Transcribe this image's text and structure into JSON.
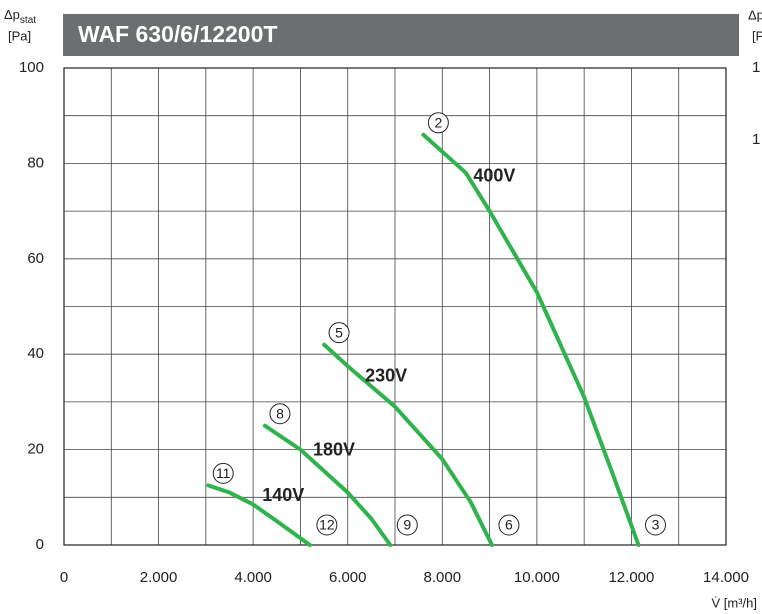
{
  "chart_data": {
    "type": "line",
    "title": "WAF 630/6/12200T",
    "ylabel": {
      "symbol": "Δp",
      "sub": "stat",
      "unit": "[Pa]"
    },
    "xlabel": "V̇ [m³/h]",
    "xlim": [
      0,
      14000
    ],
    "ylim": [
      0,
      100
    ],
    "xticks": [
      0,
      {
        "value": 2000,
        "label": "2.000"
      },
      {
        "value": 4000,
        "label": "4.000"
      },
      {
        "value": 6000,
        "label": "6.000"
      },
      {
        "value": 8000,
        "label": "8.000"
      },
      {
        "value": 10000,
        "label": "10.000"
      },
      {
        "value": 12000,
        "label": "12.000"
      },
      {
        "value": 14000,
        "label": "14.000"
      }
    ],
    "xminor": [
      1000,
      3000,
      5000,
      7000,
      9000,
      11000,
      13000
    ],
    "yticks": [
      0,
      20,
      40,
      60,
      80,
      100
    ],
    "yminor": [
      10,
      30,
      50,
      70,
      90
    ],
    "grid": true,
    "series": [
      {
        "name": "400V",
        "color": "#2fb34c",
        "start_label": "2",
        "end_label": "3",
        "x": [
          7600,
          8500,
          9000,
          10000,
          11000,
          11600,
          12150
        ],
        "y": [
          86,
          78,
          70,
          53,
          31,
          15,
          0
        ]
      },
      {
        "name": "230V",
        "color": "#2fb34c",
        "start_label": "5",
        "end_label": "6",
        "x": [
          5500,
          6000,
          7000,
          8000,
          8600,
          9050
        ],
        "y": [
          42,
          37.5,
          29,
          18,
          9,
          0
        ]
      },
      {
        "name": "180V",
        "color": "#2fb34c",
        "start_label": "8",
        "end_label": "9",
        "x": [
          4250,
          5000,
          6000,
          6500,
          6900
        ],
        "y": [
          25,
          20,
          11,
          5.5,
          0
        ]
      },
      {
        "name": "140V",
        "color": "#2fb34c",
        "start_label": "11",
        "end_label": "12",
        "x": [
          3050,
          3500,
          4000,
          4500,
          5200
        ],
        "y": [
          12.5,
          11,
          8.5,
          5,
          0
        ]
      }
    ],
    "right_fragment": {
      "label": "Δp",
      "unit": "[P",
      "ticks": [
        "1",
        "1"
      ]
    }
  }
}
